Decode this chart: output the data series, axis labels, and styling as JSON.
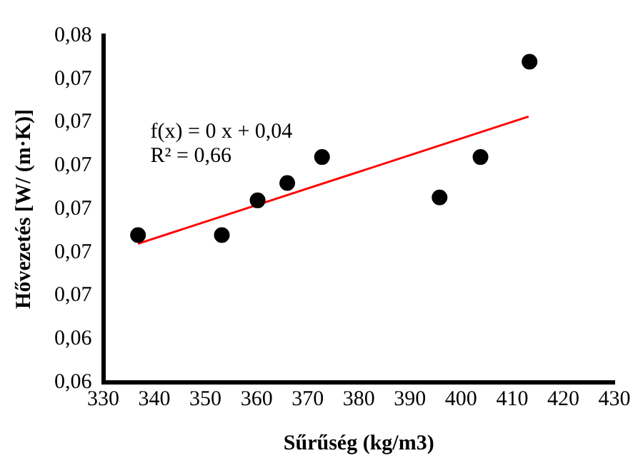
{
  "chart_data": {
    "type": "scatter",
    "xlabel": "Sűrűség (kg/m3)",
    "ylabel": "Hővezetés [W/ (m·K)]",
    "series": [
      {
        "marker": "circle",
        "color": "#000000",
        "x": [
          336.8,
          353.2,
          360.2,
          366.0,
          372.8,
          395.8,
          403.8,
          413.4
        ],
        "values": [
          0.0685,
          0.0685,
          0.0697,
          0.0703,
          0.0712,
          0.0698,
          0.0712,
          0.0745
        ]
      },
      {
        "type": "line",
        "marker": "none",
        "color": "#ff0000",
        "x": [
          336.8,
          413.2
        ],
        "values": [
          0.0682,
          0.0726
        ]
      }
    ],
    "xlim": [
      330,
      430
    ],
    "xticks": [
      330,
      340,
      350,
      360,
      370,
      380,
      390,
      400,
      410,
      420,
      430
    ],
    "ylim": [
      0.0634,
      0.0754
    ],
    "yticks": [
      {
        "value": 0.0634,
        "label": "0,06"
      },
      {
        "value": 0.0649,
        "label": "0,06"
      },
      {
        "value": 0.0664,
        "label": "0,07"
      },
      {
        "value": 0.0679,
        "label": "0,07"
      },
      {
        "value": 0.0694,
        "label": "0,07"
      },
      {
        "value": 0.0709,
        "label": "0,07"
      },
      {
        "value": 0.0724,
        "label": "0,07"
      },
      {
        "value": 0.0739,
        "label": "0,07"
      },
      {
        "value": 0.0754,
        "label": "0,08"
      }
    ],
    "annotations": [
      "f(x) = 0 x + 0,04",
      "R² = 0,66"
    ],
    "grid": false,
    "legend": false
  }
}
